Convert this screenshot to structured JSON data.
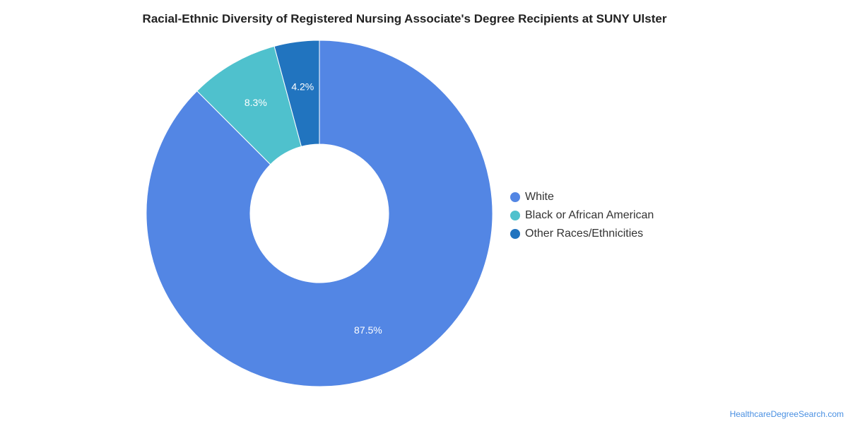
{
  "chart_data": {
    "type": "pie",
    "title": "Racial-Ethnic Diversity of Registered Nursing Associate's Degree Recipients at SUNY Ulster",
    "series": [
      {
        "categories": [
          "White",
          "Black or African American",
          "Other Races/Ethnicities"
        ],
        "values": [
          87.5,
          8.3,
          4.2
        ],
        "labels": [
          "87.5%",
          "8.3%",
          "4.2%"
        ],
        "colors": [
          "#5386e4",
          "#4fc1cd",
          "#2174bf"
        ]
      }
    ],
    "donut": true,
    "legend_position": "right"
  },
  "credit": "HealthcareDegreeSearch.com"
}
